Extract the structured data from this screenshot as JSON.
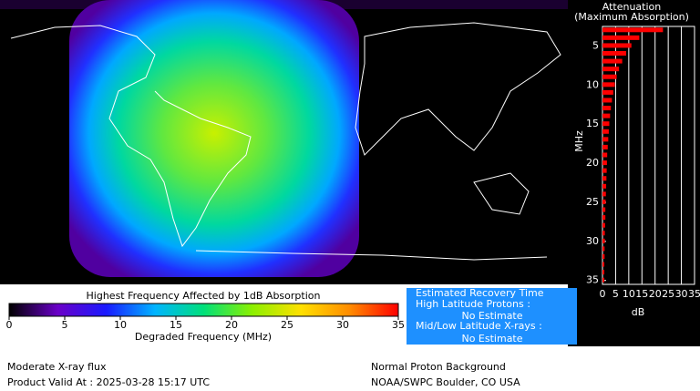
{
  "map": {
    "title": "Highest Frequency Affected by 1dB Absorption"
  },
  "colorbar": {
    "xlabel": "Degraded Frequency (MHz)",
    "xlim": [
      0,
      35
    ],
    "xticks": [
      0,
      5,
      10,
      15,
      20,
      25,
      30,
      35
    ],
    "colormap": [
      "#000000",
      "#6a00c8",
      "#1a1aff",
      "#00b4ff",
      "#00e07a",
      "#8cf000",
      "#ffe000",
      "#ff8c00",
      "#ff0000"
    ]
  },
  "chart_data": {
    "type": "bar",
    "orientation": "horizontal",
    "title": "Attenuation",
    "subtitle": "(Maximum Absorption)",
    "ylabel": "MHz",
    "xlabel": "dB",
    "color": "#ff0000",
    "grid": true,
    "x": [
      3,
      4,
      5,
      6,
      7,
      8,
      9,
      10,
      11,
      12,
      13,
      14,
      15,
      16,
      17,
      18,
      19,
      20,
      21,
      22,
      23,
      24,
      25,
      26,
      27,
      28,
      29,
      30,
      31,
      32,
      33,
      34,
      35
    ],
    "values": [
      23,
      14,
      11,
      9,
      7.5,
      6.3,
      5.4,
      4.7,
      4.1,
      3.6,
      3.2,
      2.9,
      2.6,
      2.4,
      2.2,
      2,
      1.8,
      1.7,
      1.6,
      1.5,
      1.4,
      1.3,
      1.2,
      1.1,
      1.1,
      1,
      0.9,
      0.9,
      0.8,
      0.8,
      0.7,
      0.7,
      0.7
    ],
    "ylim": [
      2.5,
      35.5
    ],
    "yticks": [
      5,
      10,
      15,
      20,
      25,
      30,
      35
    ],
    "xlim": [
      0,
      35
    ],
    "xticks": [
      0,
      5,
      10,
      15,
      20,
      25,
      30,
      35
    ]
  },
  "recovery": {
    "title": "Estimated Recovery Time",
    "high_label": "High Latitude Protons :",
    "high_value": "No Estimate",
    "low_label": "Mid/Low Latitude X-rays :",
    "low_value": "No Estimate"
  },
  "footer": {
    "xray": "Moderate X-ray flux",
    "valid": "Product Valid At : 2025-03-28 15:17 UTC",
    "proton": "Normal Proton Background",
    "source": "NOAA/SWPC Boulder, CO USA"
  }
}
